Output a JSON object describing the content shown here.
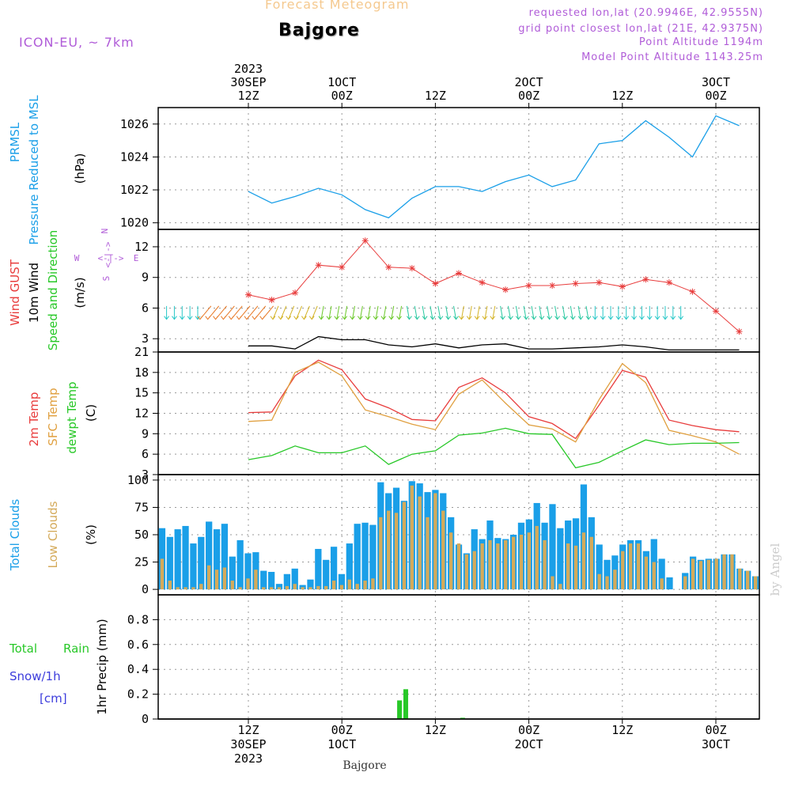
{
  "header": {
    "title": "Forecast Meteogram",
    "location": "Bajgore",
    "model": "ICON-EU, ~ 7km",
    "requested": "requested lon,lat (20.9946E, 42.9555N)",
    "grid_point": "grid point closest lon,lat (21E, 42.9375N)",
    "point_altitude": "Point Altitude 1194m",
    "model_altitude": "Model Point Altitude 1143.25m"
  },
  "top_axis": [
    {
      "l1": "2023",
      "l2": "30SEP",
      "l3": "12Z"
    },
    {
      "l1": "",
      "l2": "1OCT",
      "l3": "00Z"
    },
    {
      "l1": "",
      "l2": "",
      "l3": "12Z"
    },
    {
      "l1": "",
      "l2": "2OCT",
      "l3": "00Z"
    },
    {
      "l1": "",
      "l2": "",
      "l3": "12Z"
    },
    {
      "l1": "",
      "l2": "3OCT",
      "l3": "00Z"
    }
  ],
  "bottom_axis": [
    {
      "l1": "12Z",
      "l2": "30SEP",
      "l3": "2023"
    },
    {
      "l1": "00Z",
      "l2": "1OCT",
      "l3": ""
    },
    {
      "l1": "12Z",
      "l2": "",
      "l3": ""
    },
    {
      "l1": "00Z",
      "l2": "2OCT",
      "l3": ""
    },
    {
      "l1": "12Z",
      "l2": "",
      "l3": ""
    },
    {
      "l1": "00Z",
      "l2": "3OCT",
      "l3": ""
    }
  ],
  "bottom_label": "Bajgore",
  "credit": "by Angel",
  "colors": {
    "pressure": "#1a9fe8",
    "gust": "#e83c3c",
    "wind": "#000000",
    "temp2m": "#e83c3c",
    "sfc": "#e0a040",
    "dewpt": "#28c828",
    "total_clouds": "#1a9fe8",
    "low_clouds": "#d4aa5a",
    "rain": "#28c828",
    "snow": "#3c3cdc",
    "compass": "#b05cd8"
  },
  "panels": {
    "pressure": {
      "labels": [
        "PRMSL",
        "Pressure Reduced to MSL"
      ],
      "unit": "(hPa)"
    },
    "wind": {
      "labels": [
        "Wind GUST",
        "10m Wind",
        "Speed and Direction"
      ],
      "unit": "(m/s)",
      "compass": {
        "w": "W",
        "e": "E",
        "n": "N",
        "s": "S",
        "arrow_h": "<-|->",
        "arrow_v": "<-|->"
      }
    },
    "temp": {
      "labels": [
        "2m Temp",
        "SFC Temp",
        "dewpt Temp"
      ],
      "unit": "(C)"
    },
    "clouds": {
      "labels": [
        "Total Clouds",
        "Low Clouds"
      ],
      "unit": "(%)"
    },
    "precip": {
      "labels": [
        "Total",
        "Rain",
        "Snow/1h",
        "[cm]"
      ],
      "unit": "1hr Precip (mm)"
    }
  },
  "chart_data": [
    {
      "type": "line",
      "name": "pressure",
      "ylabel": "(hPa)",
      "x_hours": [
        0,
        3,
        6,
        9,
        12,
        15,
        18,
        21,
        24,
        27,
        30,
        33,
        36,
        39,
        42,
        45,
        48,
        51,
        54,
        57,
        60,
        63
      ],
      "ylim": [
        1019.6,
        1027.0
      ],
      "yticks": [
        1020,
        1022,
        1024,
        1026
      ],
      "series": [
        {
          "values": [
            1021.9,
            1021.2,
            1021.6,
            1022.1,
            1021.7,
            1020.8,
            1020.3,
            1021.5,
            1022.2,
            1022.2,
            1021.9,
            1022.5,
            1022.9,
            1022.2,
            1022.6,
            1024.8,
            1025.0,
            1026.2,
            1025.2,
            1024.0,
            1026.5,
            1025.9
          ],
          "name": "PRMSL"
        }
      ]
    },
    {
      "type": "line",
      "name": "wind",
      "ylabel": "(m/s)",
      "x_hours": [
        0,
        3,
        6,
        9,
        12,
        15,
        18,
        21,
        24,
        27,
        30,
        33,
        36,
        39,
        42,
        45,
        48,
        51,
        54,
        57,
        60,
        63
      ],
      "ylim": [
        1.7,
        13.7
      ],
      "yticks": [
        3,
        6,
        9,
        12
      ],
      "series": [
        {
          "name": "Wind GUST",
          "values": [
            7.3,
            6.8,
            7.5,
            10.2,
            10.0,
            12.6,
            10.0,
            9.9,
            8.4,
            9.4,
            8.5,
            7.8,
            8.2,
            8.2,
            8.4,
            8.5,
            8.1,
            8.8,
            8.5,
            7.6,
            5.7,
            3.7
          ]
        },
        {
          "name": "10m Wind",
          "values": [
            2.3,
            2.3,
            2.0,
            3.2,
            2.9,
            2.9,
            2.4,
            2.2,
            2.5,
            2.1,
            2.4,
            2.5,
            2.0,
            2.0,
            2.1,
            2.2,
            2.4,
            2.2,
            1.9,
            1.9,
            1.9,
            1.9
          ]
        }
      ]
    },
    {
      "type": "line",
      "name": "temperature",
      "ylabel": "(C)",
      "x_hours": [
        0,
        3,
        6,
        9,
        12,
        15,
        18,
        21,
        24,
        27,
        30,
        33,
        36,
        39,
        42,
        45,
        48,
        51,
        54,
        57,
        60,
        63
      ],
      "ylim": [
        3,
        21
      ],
      "yticks": [
        3,
        6,
        9,
        12,
        15,
        18,
        21
      ],
      "series": [
        {
          "name": "2m Temp",
          "values": [
            12.1,
            12.2,
            17.5,
            19.8,
            18.4,
            14.1,
            12.8,
            11.1,
            10.9,
            15.8,
            17.2,
            15.0,
            11.5,
            10.5,
            8.3,
            13.2,
            18.3,
            17.3,
            11.0,
            10.2,
            9.6,
            9.3
          ]
        },
        {
          "name": "SFC Temp",
          "values": [
            10.8,
            11.0,
            18.0,
            19.5,
            17.5,
            12.5,
            11.5,
            10.4,
            9.6,
            14.8,
            16.9,
            13.5,
            10.3,
            9.7,
            7.8,
            14.0,
            19.3,
            16.5,
            9.5,
            8.7,
            7.8,
            6.0
          ]
        },
        {
          "name": "dewpt Temp",
          "values": [
            5.2,
            5.8,
            7.2,
            6.2,
            6.2,
            7.2,
            4.5,
            6.0,
            6.5,
            8.8,
            9.1,
            9.8,
            9.0,
            8.9,
            4.0,
            4.8,
            6.5,
            8.1,
            7.4,
            7.6,
            7.6,
            7.7
          ]
        }
      ]
    },
    {
      "type": "bar",
      "name": "clouds",
      "ylabel": "(%)",
      "ylim": [
        -5,
        105
      ],
      "yticks": [
        0,
        25,
        50,
        75,
        100
      ],
      "series": [
        {
          "name": "Total Clouds",
          "values": [
            56,
            48,
            55,
            58,
            42,
            48,
            62,
            55,
            60,
            30,
            45,
            33,
            34,
            17,
            16,
            5,
            14,
            19,
            4,
            9,
            37,
            27,
            39,
            14,
            42,
            60,
            61,
            59,
            98,
            88,
            93,
            81,
            99,
            97,
            89,
            91,
            88,
            66,
            41,
            33,
            55,
            46,
            63,
            47,
            46,
            50,
            61,
            64,
            79,
            61,
            78,
            56,
            63,
            65,
            96,
            66,
            41,
            27,
            31,
            41,
            45,
            45,
            35,
            46,
            28,
            11,
            0,
            15,
            30,
            27,
            28,
            28,
            32,
            32,
            19,
            17,
            12
          ]
        },
        {
          "name": "Low Clouds",
          "values": [
            28,
            8,
            2,
            2,
            2,
            5,
            22,
            18,
            20,
            8,
            2,
            10,
            18,
            2,
            2,
            2,
            3,
            5,
            2,
            2,
            3,
            3,
            8,
            4,
            9,
            5,
            8,
            10,
            66,
            72,
            70,
            80,
            95,
            85,
            66,
            88,
            72,
            52,
            42,
            32,
            35,
            42,
            45,
            42,
            45,
            48,
            50,
            52,
            58,
            45,
            12,
            5,
            42,
            40,
            52,
            48,
            14,
            12,
            18,
            35,
            42,
            42,
            30,
            25,
            10,
            0,
            0,
            12,
            28,
            26,
            27,
            28,
            32,
            32,
            19,
            17,
            12
          ]
        }
      ]
    },
    {
      "type": "bar",
      "name": "precip",
      "ylabel": "1hr Precip (mm)",
      "ylim": [
        0,
        1.0
      ],
      "yticks": [
        0,
        0.2,
        0.4,
        0.6,
        0.8
      ],
      "series": [
        {
          "name": "Total Rain",
          "values": [
            0.15,
            0.24,
            0.01
          ]
        }
      ],
      "x_hours": [
        19.4,
        20.2,
        27.5
      ]
    }
  ]
}
